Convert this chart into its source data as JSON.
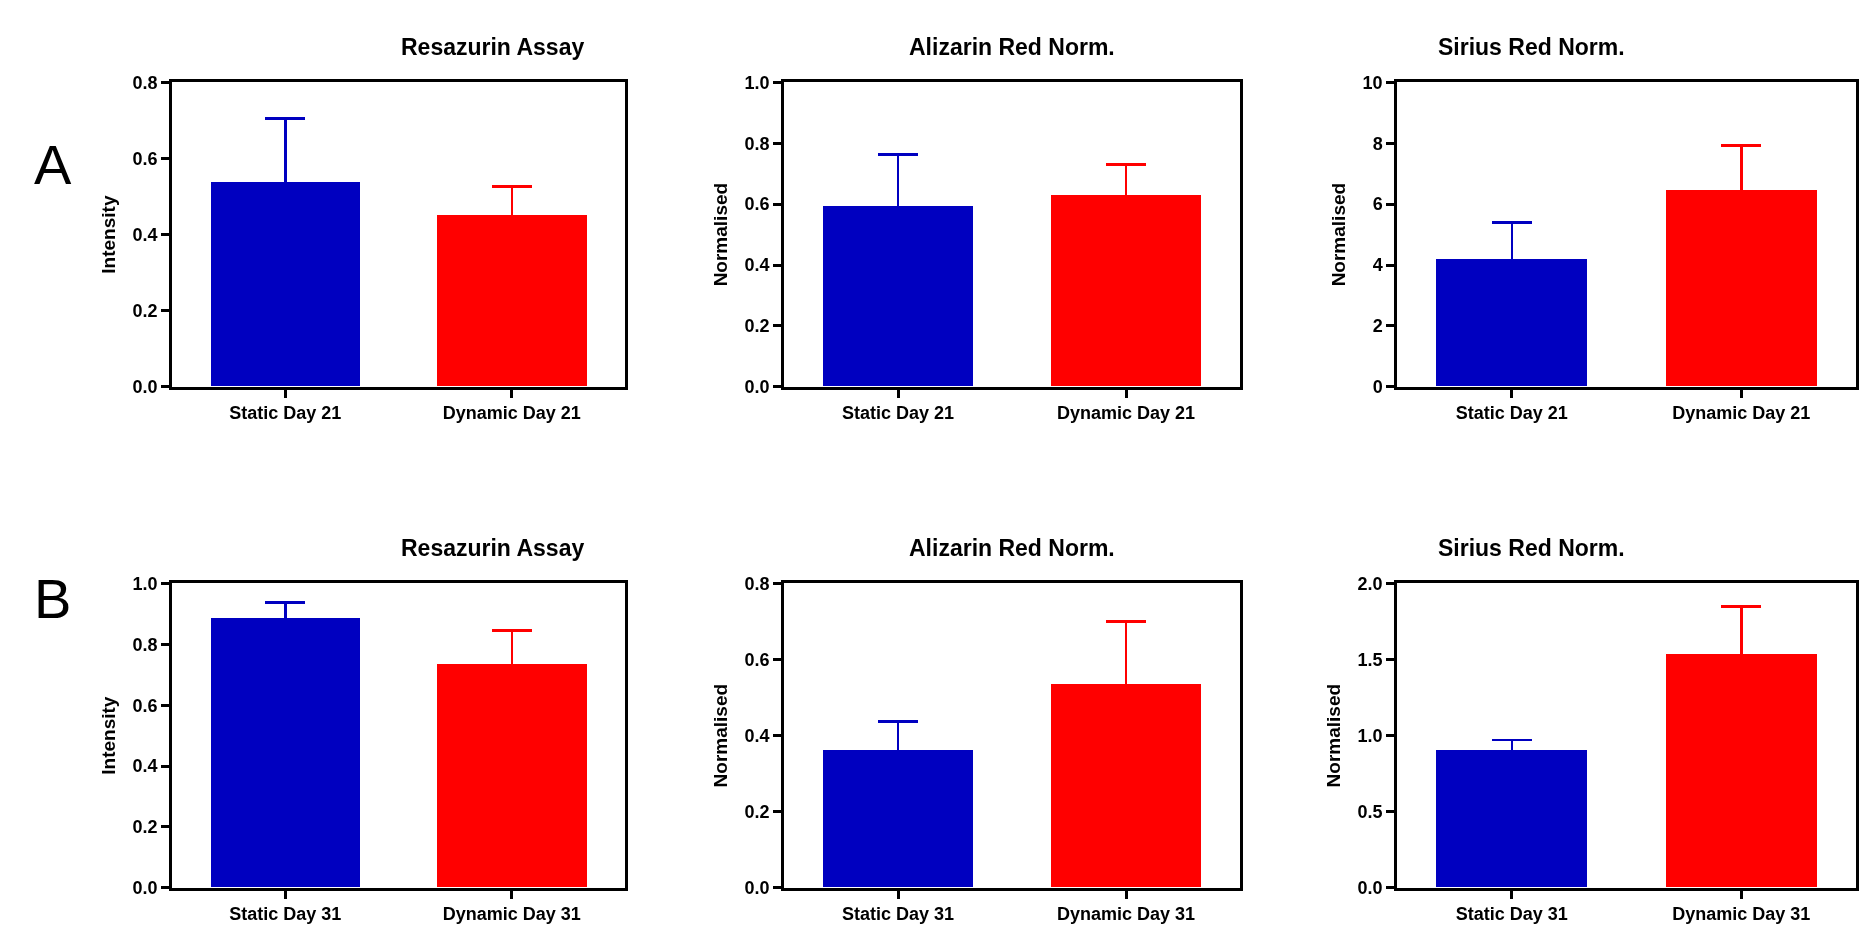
{
  "chart_data": [
    {
      "type": "bar",
      "title": "Resazurin Assay",
      "ylabel": "Intensity",
      "annotations": [
        "A"
      ],
      "categories": [
        "Static Day 21",
        "Dynamic Day 21"
      ],
      "values": [
        0.537,
        0.451
      ],
      "colors": [
        "#0000c0",
        "#ff0000"
      ],
      "errors": [
        0.168,
        0.075
      ],
      "ylim": [
        0,
        0.8
      ],
      "yticks": [
        {
          "value": 0,
          "label": "0.0"
        },
        0.2,
        0.4,
        0.6,
        0.8
      ]
    },
    {
      "type": "bar",
      "title": "Alizarin Red Norm.",
      "ylabel": "Normalised",
      "categories": [
        "Static Day 21",
        "Dynamic Day 21"
      ],
      "values": [
        0.593,
        0.63
      ],
      "colors": [
        "#0000c0",
        "#ff0000"
      ],
      "errors": [
        0.17,
        0.1
      ],
      "ylim": [
        0,
        1.0
      ],
      "yticks": [
        {
          "value": 0,
          "label": "0.0"
        },
        0.2,
        0.4,
        0.6,
        0.8,
        {
          "value": 1,
          "label": "1.0"
        }
      ]
    },
    {
      "type": "bar",
      "title": "Sirius Red Norm.",
      "ylabel": "Normalised",
      "categories": [
        "Static Day 21",
        "Dynamic Day 21"
      ],
      "values": [
        4.18,
        6.44
      ],
      "colors": [
        "#0000c0",
        "#ff0000"
      ],
      "errors": [
        1.21,
        1.49
      ],
      "ylim": [
        0,
        10
      ],
      "yticks": [
        0,
        2,
        4,
        6,
        8,
        10
      ]
    },
    {
      "type": "bar",
      "title": "Resazurin Assay",
      "ylabel": "Intensity",
      "annotations": [
        "B"
      ],
      "categories": [
        "Static Day 31",
        "Dynamic Day 31"
      ],
      "values": [
        0.884,
        0.734
      ],
      "colors": [
        "#0000c0",
        "#ff0000"
      ],
      "errors": [
        0.054,
        0.112
      ],
      "ylim": [
        0,
        1.0
      ],
      "yticks": [
        {
          "value": 0,
          "label": "0.0"
        },
        0.2,
        0.4,
        0.6,
        0.8,
        {
          "value": 1,
          "label": "1.0"
        }
      ]
    },
    {
      "type": "bar",
      "title": "Alizarin Red Norm.",
      "ylabel": "Normalised",
      "categories": [
        "Static Day 31",
        "Dynamic Day 31"
      ],
      "values": [
        0.36,
        0.535
      ],
      "colors": [
        "#0000c0",
        "#ff0000"
      ],
      "errors": [
        0.077,
        0.165
      ],
      "ylim": [
        0,
        0.8
      ],
      "yticks": [
        {
          "value": 0,
          "label": "0.0"
        },
        0.2,
        0.4,
        0.6,
        0.8
      ]
    },
    {
      "type": "bar",
      "title": "Sirius Red Norm.",
      "ylabel": "Normalised",
      "categories": [
        "Static Day 31",
        "Dynamic Day 31"
      ],
      "values": [
        0.902,
        1.532
      ],
      "colors": [
        "#0000c0",
        "#ff0000"
      ],
      "errors": [
        0.07,
        0.316
      ],
      "ylim": [
        0,
        2.0
      ],
      "yticks": [
        {
          "value": 0,
          "label": "0.0"
        },
        0.5,
        {
          "value": 1,
          "label": "1.0"
        },
        1.5,
        {
          "value": 2,
          "label": "2.0"
        }
      ]
    }
  ]
}
